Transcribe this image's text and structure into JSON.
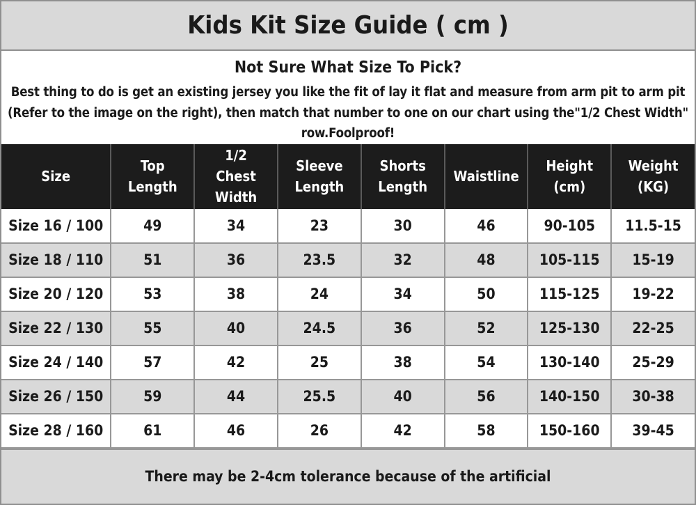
{
  "title": "Kids Kit Size Guide ( cm )",
  "intro": {
    "heading": "Not Sure What Size To Pick?",
    "body": "Best thing to do is get an existing jersey you like the fit of lay it flat and measure from arm pit to arm pit (Refer to the image on the right), then match that number to one on our chart using the\"1/2 Chest Width\" row.Foolproof!"
  },
  "table": {
    "columns": [
      "Size",
      "Top Length",
      "1/2 Chest Width",
      "Sleeve Length",
      "Shorts Length",
      "Waistline",
      "Height (cm)",
      "Weight (KG)"
    ],
    "rows": [
      [
        "Size 16 / 100",
        "49",
        "34",
        "23",
        "30",
        "46",
        "90-105",
        "11.5-15"
      ],
      [
        "Size 18 / 110",
        "51",
        "36",
        "23.5",
        "32",
        "48",
        "105-115",
        "15-19"
      ],
      [
        "Size 20 / 120",
        "53",
        "38",
        "24",
        "34",
        "50",
        "115-125",
        "19-22"
      ],
      [
        "Size 22 / 130",
        "55",
        "40",
        "24.5",
        "36",
        "52",
        "125-130",
        "22-25"
      ],
      [
        "Size 24 / 140",
        "57",
        "42",
        "25",
        "38",
        "54",
        "130-140",
        "25-29"
      ],
      [
        "Size 26 / 150",
        "59",
        "44",
        "25.5",
        "40",
        "56",
        "140-150",
        "30-38"
      ],
      [
        "Size 28 / 160",
        "61",
        "46",
        "26",
        "42",
        "58",
        "150-160",
        "39-45"
      ]
    ]
  },
  "footer": "There may be 2-4cm tolerance because of the artificial",
  "colors": {
    "band_gray": "#d9d9d9",
    "header_black": "#1c1c1c",
    "row_alt_gray": "#d9d9d9",
    "border_gray": "#979797",
    "text_black": "#1a1a1a"
  }
}
